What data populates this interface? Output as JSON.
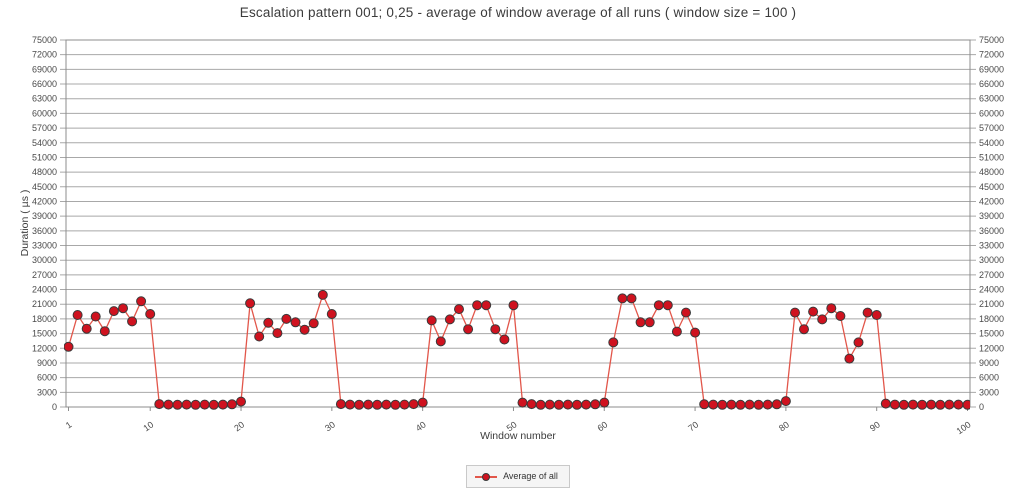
{
  "chart_data": {
    "type": "line",
    "title": "Escalation pattern 001; 0,25 - average of window average of all runs ( window size = 100 )",
    "xlabel": "Window number",
    "ylabel": "Duration ( µs )",
    "ylim": [
      0,
      75000
    ],
    "ytick_step": 3000,
    "xlim": [
      1,
      100
    ],
    "xticks": [
      1,
      10,
      20,
      30,
      40,
      50,
      60,
      70,
      80,
      90,
      100
    ],
    "grid": "horizontal",
    "grid_color": "#a8a8a8",
    "axis_color": "#8c8c8c",
    "legend": {
      "position": "bottom",
      "entries": [
        {
          "label": "Average of all"
        }
      ]
    },
    "series": [
      {
        "name": "Average of all",
        "line_color": "#e2564a",
        "marker_color": "#cf121f",
        "marker_outline": "#3a3a3a",
        "x_start": 1,
        "values": [
          12300,
          18800,
          16000,
          18500,
          15500,
          19600,
          20200,
          17500,
          21600,
          19000,
          600,
          500,
          450,
          500,
          450,
          500,
          450,
          500,
          550,
          1100,
          21200,
          14400,
          17200,
          15100,
          18000,
          17300,
          15800,
          17100,
          22900,
          19000,
          600,
          500,
          450,
          500,
          450,
          500,
          450,
          500,
          600,
          900,
          17700,
          13400,
          17900,
          20000,
          15900,
          20800,
          20800,
          15900,
          13800,
          20800,
          900,
          600,
          450,
          500,
          450,
          500,
          450,
          500,
          550,
          900,
          13200,
          22200,
          22200,
          17300,
          17300,
          20800,
          20800,
          15400,
          19300,
          15200,
          550,
          500,
          450,
          500,
          450,
          500,
          450,
          500,
          550,
          1200,
          19300,
          15900,
          19500,
          17900,
          20200,
          18600,
          9900,
          13200,
          19300,
          18800,
          700,
          500,
          450,
          500,
          450,
          500,
          450,
          500,
          500,
          450
        ]
      }
    ]
  }
}
